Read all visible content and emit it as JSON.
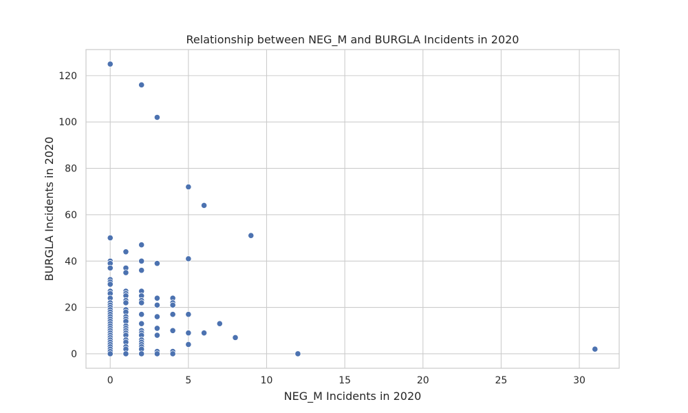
{
  "chart_data": {
    "type": "scatter",
    "title": "Relationship between NEG_M and BURGLA Incidents in 2020",
    "xlabel": "NEG_M Incidents in 2020",
    "ylabel": "BURGLA Incidents in 2020",
    "xlim": [
      -1.55,
      32.55
    ],
    "ylim": [
      -6.25,
      131.25
    ],
    "x_ticks": [
      0,
      5,
      10,
      15,
      20,
      25,
      30
    ],
    "y_ticks": [
      0,
      20,
      40,
      60,
      80,
      100,
      120
    ],
    "grid": true,
    "point_color": "#4c72b0",
    "grid_color": "#cccccc",
    "points": [
      {
        "x": 0,
        "y": 125
      },
      {
        "x": 0,
        "y": 50
      },
      {
        "x": 0,
        "y": 40
      },
      {
        "x": 0,
        "y": 39
      },
      {
        "x": 0,
        "y": 37
      },
      {
        "x": 0,
        "y": 32
      },
      {
        "x": 0,
        "y": 31
      },
      {
        "x": 0,
        "y": 30
      },
      {
        "x": 0,
        "y": 27
      },
      {
        "x": 0,
        "y": 26
      },
      {
        "x": 0,
        "y": 24
      },
      {
        "x": 0,
        "y": 22
      },
      {
        "x": 0,
        "y": 21
      },
      {
        "x": 0,
        "y": 20
      },
      {
        "x": 0,
        "y": 19
      },
      {
        "x": 0,
        "y": 18
      },
      {
        "x": 0,
        "y": 17
      },
      {
        "x": 0,
        "y": 16
      },
      {
        "x": 0,
        "y": 15
      },
      {
        "x": 0,
        "y": 14
      },
      {
        "x": 0,
        "y": 13
      },
      {
        "x": 0,
        "y": 12
      },
      {
        "x": 0,
        "y": 11
      },
      {
        "x": 0,
        "y": 10
      },
      {
        "x": 0,
        "y": 9
      },
      {
        "x": 0,
        "y": 8
      },
      {
        "x": 0,
        "y": 7
      },
      {
        "x": 0,
        "y": 6
      },
      {
        "x": 0,
        "y": 5
      },
      {
        "x": 0,
        "y": 4
      },
      {
        "x": 0,
        "y": 3
      },
      {
        "x": 0,
        "y": 2
      },
      {
        "x": 0,
        "y": 1
      },
      {
        "x": 0,
        "y": 0
      },
      {
        "x": 1,
        "y": 44
      },
      {
        "x": 1,
        "y": 37
      },
      {
        "x": 1,
        "y": 35
      },
      {
        "x": 1,
        "y": 27
      },
      {
        "x": 1,
        "y": 26
      },
      {
        "x": 1,
        "y": 25
      },
      {
        "x": 1,
        "y": 23
      },
      {
        "x": 1,
        "y": 22
      },
      {
        "x": 1,
        "y": 19
      },
      {
        "x": 1,
        "y": 18
      },
      {
        "x": 1,
        "y": 16
      },
      {
        "x": 1,
        "y": 15
      },
      {
        "x": 1,
        "y": 14
      },
      {
        "x": 1,
        "y": 12
      },
      {
        "x": 1,
        "y": 11
      },
      {
        "x": 1,
        "y": 10
      },
      {
        "x": 1,
        "y": 9
      },
      {
        "x": 1,
        "y": 8
      },
      {
        "x": 1,
        "y": 6
      },
      {
        "x": 1,
        "y": 5
      },
      {
        "x": 1,
        "y": 3
      },
      {
        "x": 1,
        "y": 2
      },
      {
        "x": 1,
        "y": 0
      },
      {
        "x": 2,
        "y": 116
      },
      {
        "x": 2,
        "y": 47
      },
      {
        "x": 2,
        "y": 40
      },
      {
        "x": 2,
        "y": 36
      },
      {
        "x": 2,
        "y": 27
      },
      {
        "x": 2,
        "y": 25
      },
      {
        "x": 2,
        "y": 23
      },
      {
        "x": 2,
        "y": 22
      },
      {
        "x": 2,
        "y": 17
      },
      {
        "x": 2,
        "y": 13
      },
      {
        "x": 2,
        "y": 10
      },
      {
        "x": 2,
        "y": 9
      },
      {
        "x": 2,
        "y": 8
      },
      {
        "x": 2,
        "y": 6
      },
      {
        "x": 2,
        "y": 5
      },
      {
        "x": 2,
        "y": 4
      },
      {
        "x": 2,
        "y": 3
      },
      {
        "x": 2,
        "y": 2
      },
      {
        "x": 2,
        "y": 0
      },
      {
        "x": 3,
        "y": 102
      },
      {
        "x": 3,
        "y": 39
      },
      {
        "x": 3,
        "y": 24
      },
      {
        "x": 3,
        "y": 21
      },
      {
        "x": 3,
        "y": 16
      },
      {
        "x": 3,
        "y": 11
      },
      {
        "x": 3,
        "y": 8
      },
      {
        "x": 3,
        "y": 1
      },
      {
        "x": 3,
        "y": 0
      },
      {
        "x": 4,
        "y": 24
      },
      {
        "x": 4,
        "y": 22
      },
      {
        "x": 4,
        "y": 21
      },
      {
        "x": 4,
        "y": 17
      },
      {
        "x": 4,
        "y": 10
      },
      {
        "x": 4,
        "y": 1
      },
      {
        "x": 4,
        "y": 0
      },
      {
        "x": 5,
        "y": 72
      },
      {
        "x": 5,
        "y": 41
      },
      {
        "x": 5,
        "y": 17
      },
      {
        "x": 5,
        "y": 9
      },
      {
        "x": 5,
        "y": 4
      },
      {
        "x": 6,
        "y": 64
      },
      {
        "x": 6,
        "y": 9
      },
      {
        "x": 7,
        "y": 13
      },
      {
        "x": 8,
        "y": 7
      },
      {
        "x": 9,
        "y": 51
      },
      {
        "x": 12,
        "y": 0
      },
      {
        "x": 31,
        "y": 2
      }
    ]
  }
}
